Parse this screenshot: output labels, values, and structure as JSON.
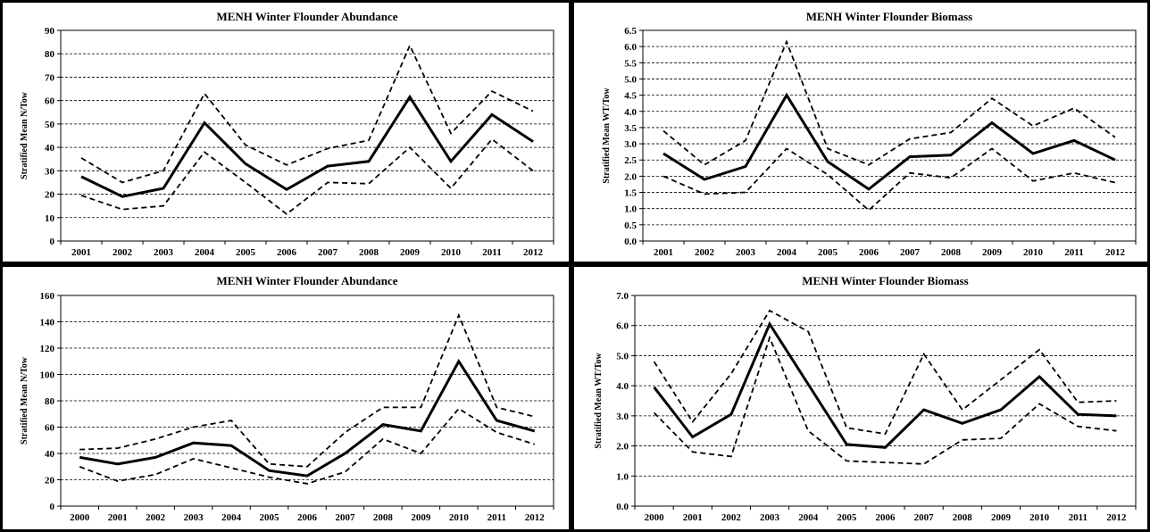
{
  "chart_data": [
    {
      "type": "line",
      "title": "MENH Winter Flounder Abundance",
      "xlabel": "",
      "ylabel": "Stratified Mean N/Tow",
      "x": [
        "2001",
        "2002",
        "2003",
        "2004",
        "2005",
        "2006",
        "2007",
        "2008",
        "2009",
        "2010",
        "2011",
        "2012"
      ],
      "ylim": [
        0,
        90
      ],
      "yticks": [
        0,
        10,
        20,
        30,
        40,
        50,
        60,
        70,
        80,
        90
      ],
      "grid": true,
      "series": [
        {
          "style": "solid-thick",
          "values": [
            27.5,
            19,
            22.5,
            50.5,
            33,
            22,
            32,
            34,
            61.5,
            34,
            54,
            42.5
          ]
        },
        {
          "style": "dashed-upper",
          "values": [
            35.5,
            25,
            30,
            63,
            41,
            32.5,
            39.5,
            43,
            83.5,
            46,
            64,
            55.5
          ]
        },
        {
          "style": "dashed-lower",
          "values": [
            19.5,
            13.5,
            15,
            38,
            25,
            11.5,
            25,
            24.5,
            40,
            22.5,
            43.5,
            30
          ]
        }
      ]
    },
    {
      "type": "line",
      "title": "MENH Winter Flounder Biomass",
      "xlabel": "",
      "ylabel": "Stratified Mean WT/Tow",
      "x": [
        "2001",
        "2002",
        "2003",
        "2004",
        "2005",
        "2006",
        "2007",
        "2008",
        "2009",
        "2010",
        "2011",
        "2012"
      ],
      "ylim": [
        0,
        6.5
      ],
      "yticks": [
        "0.0",
        "0.5",
        "1.0",
        "1.5",
        "2.0",
        "2.5",
        "3.0",
        "3.5",
        "4.0",
        "4.5",
        "5.0",
        "5.5",
        "6.0",
        "6.5"
      ],
      "grid": true,
      "series": [
        {
          "style": "solid-thick",
          "values": [
            2.7,
            1.9,
            2.3,
            4.5,
            2.45,
            1.6,
            2.6,
            2.65,
            3.65,
            2.7,
            3.1,
            2.5
          ]
        },
        {
          "style": "dashed-upper",
          "values": [
            3.4,
            2.35,
            3.1,
            6.15,
            2.85,
            2.35,
            3.15,
            3.35,
            4.4,
            3.55,
            4.1,
            3.2
          ]
        },
        {
          "style": "dashed-lower",
          "values": [
            2.0,
            1.45,
            1.5,
            2.85,
            2.05,
            0.95,
            2.1,
            1.95,
            2.85,
            1.85,
            2.1,
            1.8
          ]
        }
      ]
    },
    {
      "type": "line",
      "title": "MENH Winter Flounder Abundance",
      "xlabel": "",
      "ylabel": "Stratified Mean N/Tow",
      "x": [
        "2000",
        "2001",
        "2002",
        "2003",
        "2004",
        "2005",
        "2006",
        "2007",
        "2008",
        "2009",
        "2010",
        "2011",
        "2012"
      ],
      "ylim": [
        0,
        160
      ],
      "yticks": [
        0,
        20,
        40,
        60,
        80,
        100,
        120,
        140,
        160
      ],
      "grid": true,
      "series": [
        {
          "style": "solid-thick",
          "values": [
            37,
            32,
            37,
            48,
            46,
            27,
            23,
            40,
            62,
            57,
            110,
            65,
            57
          ]
        },
        {
          "style": "dashed-upper",
          "values": [
            43,
            44,
            51,
            60,
            65,
            32,
            30,
            56,
            75,
            75,
            145,
            75,
            68
          ]
        },
        {
          "style": "dashed-lower",
          "values": [
            30,
            19,
            24,
            36,
            29,
            22,
            17,
            26,
            51,
            40,
            74,
            56,
            47
          ]
        }
      ]
    },
    {
      "type": "line",
      "title": "MENH Winter Flounder Biomass",
      "xlabel": "",
      "ylabel": "Stratified Mean WT/Tow",
      "x": [
        "2000",
        "2001",
        "2002",
        "2003",
        "2004",
        "2005",
        "2006",
        "2007",
        "2008",
        "2009",
        "2010",
        "2011",
        "2012"
      ],
      "ylim": [
        0,
        7
      ],
      "yticks": [
        "0.0",
        "1.0",
        "2.0",
        "3.0",
        "4.0",
        "5.0",
        "6.0",
        "7.0"
      ],
      "grid": true,
      "series": [
        {
          "style": "solid-thick",
          "values": [
            3.95,
            2.3,
            3.05,
            6.05,
            4.05,
            2.05,
            1.95,
            3.2,
            2.75,
            3.2,
            4.3,
            3.05,
            3.0
          ]
        },
        {
          "style": "dashed-upper",
          "values": [
            4.8,
            2.8,
            4.4,
            6.5,
            5.8,
            2.6,
            2.4,
            5.05,
            3.2,
            4.2,
            5.2,
            3.45,
            3.5
          ]
        },
        {
          "style": "dashed-lower",
          "values": [
            3.1,
            1.8,
            1.65,
            5.6,
            2.5,
            1.5,
            1.45,
            1.4,
            2.2,
            2.25,
            3.4,
            2.65,
            2.5
          ]
        }
      ]
    }
  ]
}
